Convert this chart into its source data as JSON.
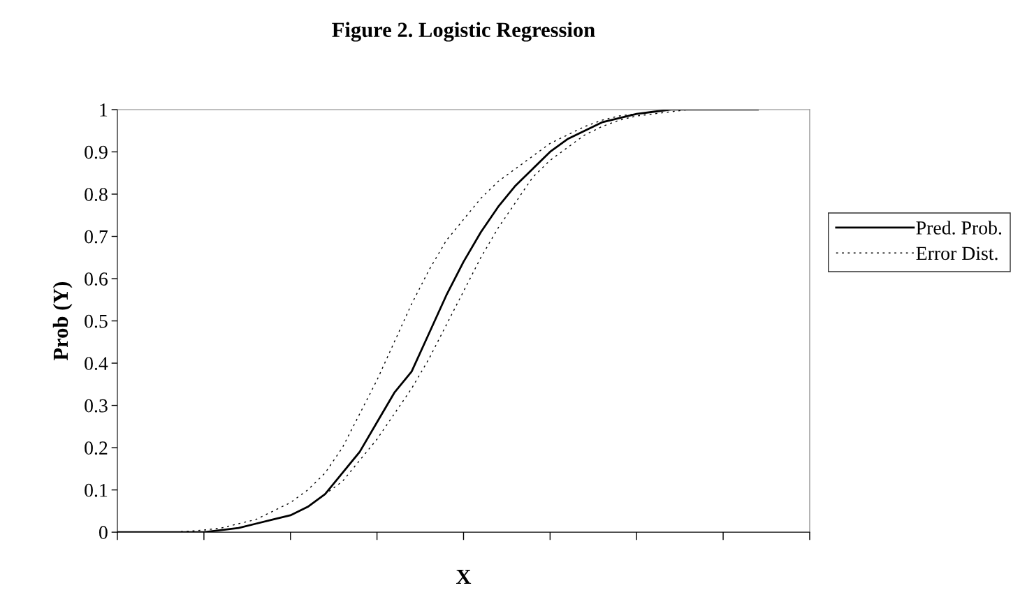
{
  "chart_data": {
    "type": "line",
    "title": "Figure 2. Logistic Regression",
    "xlabel": "X",
    "ylabel": "Prob (Y)",
    "categories": [
      null,
      null,
      null,
      null,
      null,
      null,
      null,
      null,
      null,
      null,
      null,
      null,
      null,
      null,
      null,
      null,
      null,
      null,
      null,
      null,
      null,
      null,
      null,
      null,
      null,
      null,
      null,
      null,
      null,
      null,
      null,
      null,
      null,
      null,
      null,
      null,
      null,
      null,
      null,
      null,
      null
    ],
    "series": [
      {
        "name": "Pred. Prob.",
        "color": "#000000",
        "line_style": "solid",
        "values": [
          0,
          0,
          0,
          0,
          0,
          0,
          0.005,
          0.01,
          0.02,
          0.03,
          0.04,
          0.06,
          0.09,
          0.14,
          0.19,
          0.26,
          0.33,
          0.38,
          0.47,
          0.56,
          0.64,
          0.71,
          0.77,
          0.82,
          0.86,
          0.9,
          0.93,
          0.95,
          0.97,
          0.98,
          0.99,
          0.995,
          1,
          1,
          1,
          1,
          1,
          1,
          null,
          null,
          null
        ]
      },
      {
        "name": "Error Dist.",
        "color": "#000000",
        "line_style": "dotted",
        "values": [
          null,
          null,
          null,
          0,
          0.002,
          0.005,
          0.01,
          0.02,
          0.03,
          0.05,
          0.07,
          0.1,
          0.14,
          0.2,
          0.28,
          0.36,
          0.45,
          0.54,
          0.62,
          0.69,
          0.74,
          0.79,
          0.83,
          0.86,
          0.89,
          0.92,
          0.94,
          0.96,
          0.975,
          0.985,
          0.99,
          0.995,
          1,
          1,
          1,
          1,
          1,
          1,
          null,
          null,
          null
        ]
      },
      {
        "color": "#000000",
        "line_style": "dotted",
        "values": [
          null,
          null,
          null,
          null,
          null,
          0,
          0.005,
          0.01,
          0.02,
          0.03,
          0.04,
          0.06,
          0.09,
          0.12,
          0.17,
          0.22,
          0.28,
          0.34,
          0.41,
          0.49,
          0.57,
          0.65,
          0.72,
          0.78,
          0.84,
          0.88,
          0.91,
          0.94,
          0.96,
          0.975,
          0.985,
          0.99,
          0.995,
          1,
          1,
          1,
          1,
          null,
          null,
          null,
          null
        ]
      }
    ],
    "ylim": [
      0,
      1
    ],
    "yticks": [
      0,
      0.1,
      0.2,
      0.3,
      0.4,
      0.5,
      0.6,
      0.7,
      0.8,
      0.9,
      1
    ],
    "grid": false,
    "legend": "right",
    "tick_labels": "y"
  }
}
